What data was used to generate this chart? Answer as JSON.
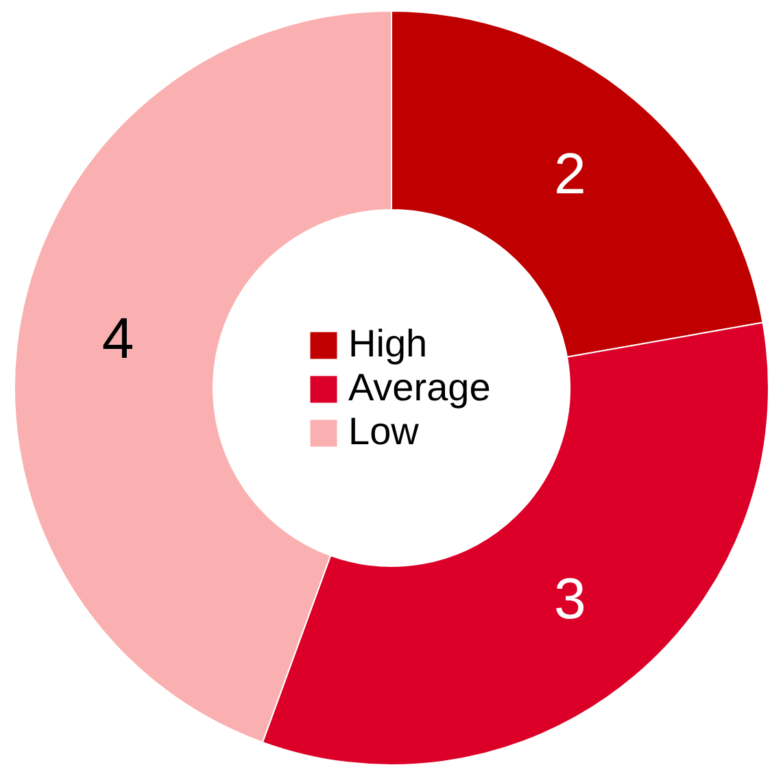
{
  "chart_data": {
    "type": "donut",
    "categories": [
      "High",
      "Average",
      "Low"
    ],
    "values": [
      2,
      3,
      4
    ],
    "colors": [
      "#c00000",
      "#dc0028",
      "#fab0b0"
    ],
    "data_labels": true,
    "legend": "center"
  }
}
